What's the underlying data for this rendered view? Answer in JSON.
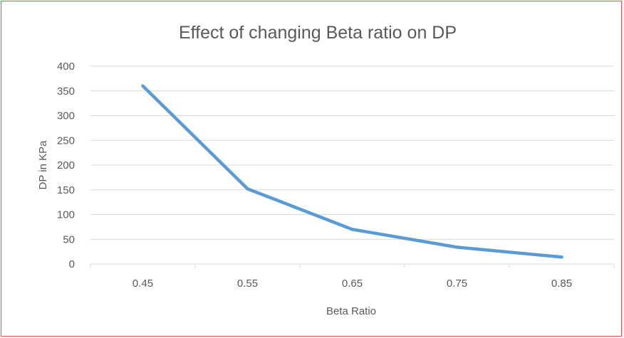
{
  "chart_data": {
    "type": "line",
    "title": "Effect of changing Beta ratio on DP",
    "xlabel": "Beta Ratio",
    "ylabel": "DP in KPa",
    "categories": [
      "0.45",
      "0.55",
      "0.65",
      "0.75",
      "0.85"
    ],
    "series": [
      {
        "values": [
          360,
          152,
          70,
          34,
          14
        ]
      }
    ],
    "ylim": [
      0,
      400
    ],
    "yticks": [
      "0",
      "50",
      "100",
      "150",
      "200",
      "250",
      "300",
      "350",
      "400"
    ],
    "grid": true,
    "legend": "none",
    "colors": {
      "line": "#5b9bd5",
      "grid": "#d9d9d9",
      "text": "#595959",
      "border": "#d9534f"
    }
  }
}
